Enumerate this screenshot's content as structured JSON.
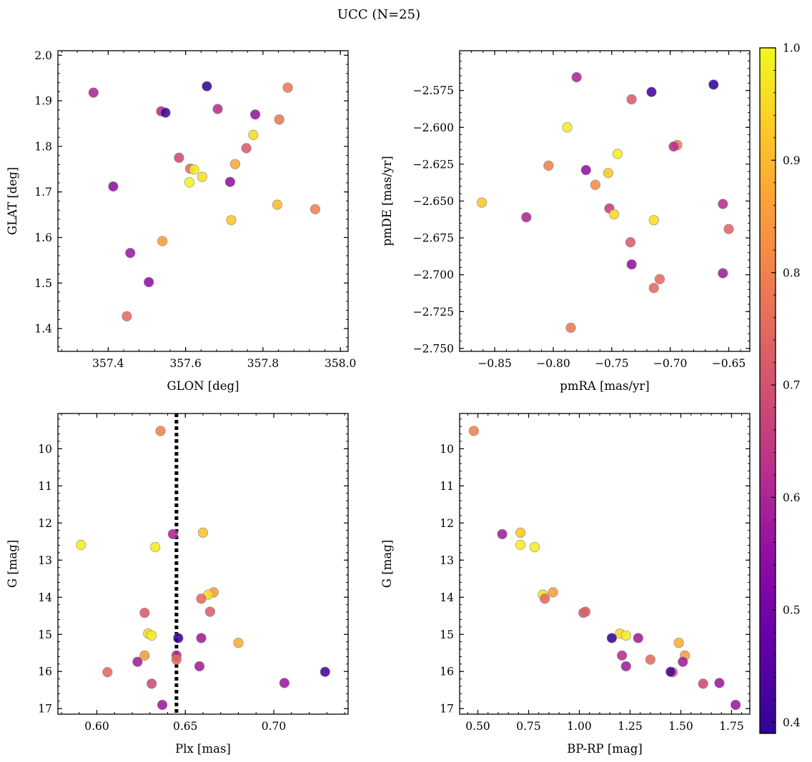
{
  "figure": {
    "suptitle": "UCC (N=25)"
  },
  "chart_data": [
    {
      "type": "scatter",
      "xlabel": "GLON [deg]",
      "ylabel": "GLAT [deg]",
      "xlim": [
        357.27,
        358.02
      ],
      "ylim": [
        1.35,
        2.01
      ],
      "xticks": [
        357.4,
        357.6,
        357.8,
        358.0
      ],
      "xtick_labels": [
        "357.4",
        "357.6",
        "357.8",
        "358.0"
      ],
      "yticks": [
        1.4,
        1.5,
        1.6,
        1.7,
        1.8,
        1.9,
        2.0
      ],
      "ytick_labels": [
        "1.4",
        "1.5",
        "1.6",
        "1.7",
        "1.8",
        "1.9",
        "2.0"
      ],
      "points": [
        {
          "x": 357.362,
          "y": 1.918,
          "c": 0.6
        },
        {
          "x": 357.655,
          "y": 1.932,
          "c": 0.4
        },
        {
          "x": 357.864,
          "y": 1.929,
          "c": 0.78
        },
        {
          "x": 357.537,
          "y": 1.877,
          "c": 0.62
        },
        {
          "x": 357.548,
          "y": 1.874,
          "c": 0.42
        },
        {
          "x": 357.683,
          "y": 1.882,
          "c": 0.62
        },
        {
          "x": 357.78,
          "y": 1.87,
          "c": 0.56
        },
        {
          "x": 357.842,
          "y": 1.859,
          "c": 0.78
        },
        {
          "x": 357.775,
          "y": 1.825,
          "c": 0.95
        },
        {
          "x": 357.757,
          "y": 1.796,
          "c": 0.72
        },
        {
          "x": 357.583,
          "y": 1.775,
          "c": 0.68
        },
        {
          "x": 357.728,
          "y": 1.761,
          "c": 0.87
        },
        {
          "x": 357.612,
          "y": 1.751,
          "c": 0.75
        },
        {
          "x": 357.622,
          "y": 1.749,
          "c": 0.98
        },
        {
          "x": 357.643,
          "y": 1.733,
          "c": 0.96
        },
        {
          "x": 357.61,
          "y": 1.721,
          "c": 0.99
        },
        {
          "x": 357.715,
          "y": 1.722,
          "c": 0.55
        },
        {
          "x": 357.413,
          "y": 1.712,
          "c": 0.55
        },
        {
          "x": 357.837,
          "y": 1.672,
          "c": 0.9
        },
        {
          "x": 357.935,
          "y": 1.662,
          "c": 0.8
        },
        {
          "x": 357.718,
          "y": 1.638,
          "c": 0.92
        },
        {
          "x": 357.54,
          "y": 1.592,
          "c": 0.85
        },
        {
          "x": 357.457,
          "y": 1.566,
          "c": 0.57
        },
        {
          "x": 357.505,
          "y": 1.502,
          "c": 0.55
        },
        {
          "x": 357.448,
          "y": 1.427,
          "c": 0.75
        }
      ]
    },
    {
      "type": "scatter",
      "xlabel": "pmRA [mas/yr]",
      "ylabel": "pmDE [mas/yr]",
      "xlim": [
        -0.88,
        -0.632
      ],
      "ylim": [
        -2.752,
        -2.548
      ],
      "xticks": [
        -0.85,
        -0.8,
        -0.75,
        -0.7,
        -0.65
      ],
      "xtick_labels": [
        "−0.85",
        "−0.80",
        "−0.75",
        "−0.70",
        "−0.65"
      ],
      "yticks": [
        -2.575,
        -2.6,
        -2.625,
        -2.65,
        -2.675,
        -2.7,
        -2.725,
        -2.75
      ],
      "ytick_labels": [
        "−2.575",
        "−2.600",
        "−2.625",
        "−2.650",
        "−2.675",
        "−2.700",
        "−2.725",
        "−2.750"
      ],
      "points": [
        {
          "x": -0.78,
          "y": -2.566,
          "c": 0.6
        },
        {
          "x": -0.663,
          "y": -2.571,
          "c": 0.4
        },
        {
          "x": -0.716,
          "y": -2.576,
          "c": 0.42
        },
        {
          "x": -0.733,
          "y": -2.581,
          "c": 0.72
        },
        {
          "x": -0.788,
          "y": -2.6,
          "c": 0.98
        },
        {
          "x": -0.694,
          "y": -2.612,
          "c": 0.8
        },
        {
          "x": -0.697,
          "y": -2.613,
          "c": 0.62
        },
        {
          "x": -0.745,
          "y": -2.618,
          "c": 0.98
        },
        {
          "x": -0.804,
          "y": -2.626,
          "c": 0.8
        },
        {
          "x": -0.772,
          "y": -2.629,
          "c": 0.55
        },
        {
          "x": -0.753,
          "y": -2.631,
          "c": 0.92
        },
        {
          "x": -0.764,
          "y": -2.639,
          "c": 0.82
        },
        {
          "x": -0.861,
          "y": -2.651,
          "c": 0.92
        },
        {
          "x": -0.655,
          "y": -2.652,
          "c": 0.62
        },
        {
          "x": -0.752,
          "y": -2.655,
          "c": 0.65
        },
        {
          "x": -0.748,
          "y": -2.659,
          "c": 0.95
        },
        {
          "x": -0.823,
          "y": -2.661,
          "c": 0.6
        },
        {
          "x": -0.714,
          "y": -2.663,
          "c": 0.96
        },
        {
          "x": -0.65,
          "y": -2.669,
          "c": 0.74
        },
        {
          "x": -0.734,
          "y": -2.678,
          "c": 0.72
        },
        {
          "x": -0.733,
          "y": -2.693,
          "c": 0.55
        },
        {
          "x": -0.655,
          "y": -2.699,
          "c": 0.58
        },
        {
          "x": -0.709,
          "y": -2.703,
          "c": 0.75
        },
        {
          "x": -0.714,
          "y": -2.709,
          "c": 0.75
        },
        {
          "x": -0.785,
          "y": -2.736,
          "c": 0.78
        }
      ]
    },
    {
      "type": "scatter",
      "xlabel": "Plx [mas]",
      "ylabel": "G [mag]",
      "xlim": [
        0.578,
        0.742
      ],
      "ylim": [
        17.15,
        9.05
      ],
      "y_inverted": true,
      "xticks": [
        0.6,
        0.65,
        0.7
      ],
      "xtick_labels": [
        "0.60",
        "0.65",
        "0.70"
      ],
      "yticks": [
        10,
        11,
        12,
        13,
        14,
        15,
        16,
        17
      ],
      "ytick_labels": [
        "10",
        "11",
        "12",
        "13",
        "14",
        "15",
        "16",
        "17"
      ],
      "vline": {
        "x": 0.645,
        "style": "dotted"
      },
      "points": [
        {
          "x": 0.636,
          "y": 9.52,
          "c": 0.8
        },
        {
          "x": 0.643,
          "y": 12.3,
          "c": 0.6
        },
        {
          "x": 0.66,
          "y": 12.26,
          "c": 0.92
        },
        {
          "x": 0.591,
          "y": 12.59,
          "c": 0.98
        },
        {
          "x": 0.633,
          "y": 12.65,
          "c": 0.98
        },
        {
          "x": 0.666,
          "y": 13.87,
          "c": 0.85
        },
        {
          "x": 0.663,
          "y": 13.93,
          "c": 0.95
        },
        {
          "x": 0.659,
          "y": 14.04,
          "c": 0.75
        },
        {
          "x": 0.627,
          "y": 14.42,
          "c": 0.72
        },
        {
          "x": 0.664,
          "y": 14.39,
          "c": 0.73
        },
        {
          "x": 0.629,
          "y": 14.98,
          "c": 0.95
        },
        {
          "x": 0.631,
          "y": 15.03,
          "c": 0.98
        },
        {
          "x": 0.646,
          "y": 15.1,
          "c": 0.4
        },
        {
          "x": 0.659,
          "y": 15.1,
          "c": 0.58
        },
        {
          "x": 0.68,
          "y": 15.23,
          "c": 0.88
        },
        {
          "x": 0.627,
          "y": 15.57,
          "c": 0.85
        },
        {
          "x": 0.645,
          "y": 15.57,
          "c": 0.62
        },
        {
          "x": 0.645,
          "y": 15.68,
          "c": 0.75
        },
        {
          "x": 0.623,
          "y": 15.74,
          "c": 0.58
        },
        {
          "x": 0.658,
          "y": 15.86,
          "c": 0.58
        },
        {
          "x": 0.606,
          "y": 16.02,
          "c": 0.75
        },
        {
          "x": 0.729,
          "y": 16.01,
          "c": 0.42
        },
        {
          "x": 0.631,
          "y": 16.33,
          "c": 0.68
        },
        {
          "x": 0.706,
          "y": 16.31,
          "c": 0.57
        },
        {
          "x": 0.637,
          "y": 16.9,
          "c": 0.57
        }
      ]
    },
    {
      "type": "scatter",
      "xlabel": "BP-RP [mag]",
      "ylabel": "G [mag]",
      "xlim": [
        0.41,
        1.84
      ],
      "ylim": [
        17.15,
        9.05
      ],
      "y_inverted": true,
      "xticks": [
        0.5,
        0.75,
        1.0,
        1.25,
        1.5,
        1.75
      ],
      "xtick_labels": [
        "0.50",
        "0.75",
        "1.00",
        "1.25",
        "1.50",
        "1.75"
      ],
      "yticks": [
        10,
        11,
        12,
        13,
        14,
        15,
        16,
        17
      ],
      "ytick_labels": [
        "10",
        "11",
        "12",
        "13",
        "14",
        "15",
        "16",
        "17"
      ],
      "points": [
        {
          "x": 0.48,
          "y": 9.52,
          "c": 0.8
        },
        {
          "x": 0.62,
          "y": 12.3,
          "c": 0.58
        },
        {
          "x": 0.71,
          "y": 12.26,
          "c": 0.92
        },
        {
          "x": 0.71,
          "y": 12.59,
          "c": 0.98
        },
        {
          "x": 0.78,
          "y": 12.65,
          "c": 0.98
        },
        {
          "x": 0.87,
          "y": 13.87,
          "c": 0.85
        },
        {
          "x": 0.82,
          "y": 13.93,
          "c": 0.95
        },
        {
          "x": 0.83,
          "y": 14.04,
          "c": 0.75
        },
        {
          "x": 1.02,
          "y": 14.42,
          "c": 0.72
        },
        {
          "x": 1.03,
          "y": 14.39,
          "c": 0.73
        },
        {
          "x": 1.2,
          "y": 14.98,
          "c": 0.95
        },
        {
          "x": 1.23,
          "y": 15.03,
          "c": 0.98
        },
        {
          "x": 1.16,
          "y": 15.1,
          "c": 0.4
        },
        {
          "x": 1.29,
          "y": 15.1,
          "c": 0.58
        },
        {
          "x": 1.49,
          "y": 15.23,
          "c": 0.88
        },
        {
          "x": 1.52,
          "y": 15.57,
          "c": 0.85
        },
        {
          "x": 1.21,
          "y": 15.57,
          "c": 0.62
        },
        {
          "x": 1.35,
          "y": 15.68,
          "c": 0.75
        },
        {
          "x": 1.51,
          "y": 15.74,
          "c": 0.58
        },
        {
          "x": 1.23,
          "y": 15.86,
          "c": 0.58
        },
        {
          "x": 1.46,
          "y": 16.02,
          "c": 0.75
        },
        {
          "x": 1.45,
          "y": 16.01,
          "c": 0.42
        },
        {
          "x": 1.61,
          "y": 16.33,
          "c": 0.68
        },
        {
          "x": 1.69,
          "y": 16.31,
          "c": 0.57
        },
        {
          "x": 1.77,
          "y": 16.9,
          "c": 0.57
        }
      ]
    }
  ],
  "colorbar": {
    "colormap": "plasma",
    "range": [
      0.39,
      1.0
    ],
    "ticks": [
      0.4,
      0.5,
      0.6,
      0.7,
      0.8,
      0.9,
      1.0
    ],
    "tick_labels": [
      "0.4",
      "0.5",
      "0.6",
      "0.7",
      "0.8",
      "0.9",
      "1.0"
    ]
  }
}
